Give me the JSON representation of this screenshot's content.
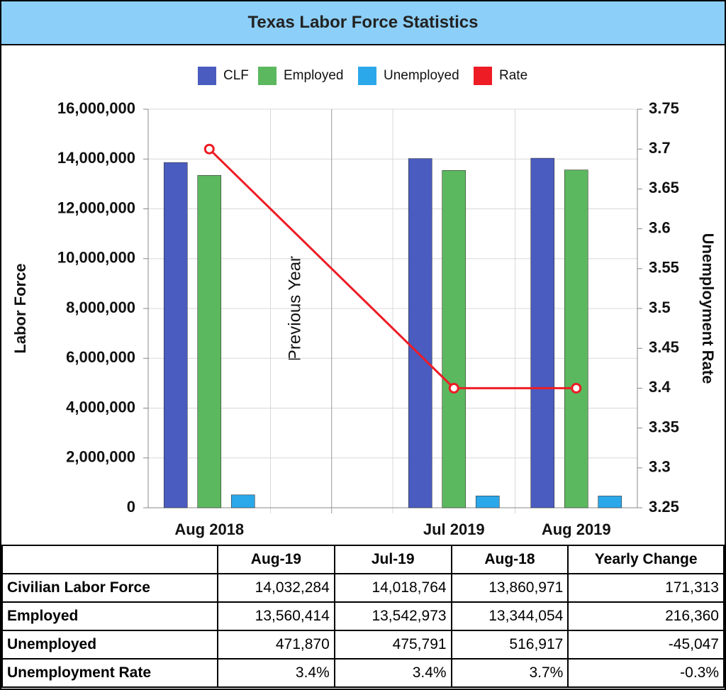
{
  "chart_data": {
    "type": "bar",
    "title": "Texas Labor Force Statistics",
    "categories": [
      "Aug 2018",
      "Jul 2019",
      "Aug 2019"
    ],
    "annotation": "Previous Year",
    "ylabel": "Labor Force",
    "y2label": "Unemployment Rate",
    "series": [
      {
        "name": "CLF",
        "color": "#4a5cc0",
        "values": [
          13860971,
          14018764,
          14032284
        ]
      },
      {
        "name": "Employed",
        "color": "#5cb85f",
        "values": [
          13344054,
          13542973,
          13560414
        ]
      },
      {
        "name": "Unemployed",
        "color": "#2ba8ea",
        "values": [
          516917,
          475791,
          471870
        ]
      },
      {
        "name": "Rate",
        "color": "#ee1c25",
        "type": "line",
        "axis": "y2",
        "values": [
          3.7,
          3.4,
          3.4
        ]
      }
    ],
    "ylim": [
      0,
      16000000
    ],
    "yticks": [
      0,
      {
        "value": 2000000,
        "label": "2,000,000"
      },
      {
        "value": 4000000,
        "label": "4,000,000"
      },
      {
        "value": 6000000,
        "label": "6,000,000"
      },
      {
        "value": 8000000,
        "label": "8,000,000"
      },
      {
        "value": 10000000,
        "label": "10,000,000"
      },
      {
        "value": 12000000,
        "label": "12,000,000"
      },
      {
        "value": 14000000,
        "label": "14,000,000"
      },
      {
        "value": 16000000,
        "label": "16,000,000"
      }
    ],
    "y2lim": [
      3.25,
      3.75
    ],
    "y2ticks": [
      3.25,
      3.3,
      3.35,
      3.4,
      3.45,
      3.5,
      3.55,
      3.6,
      3.65,
      3.7,
      3.75
    ],
    "grid": true,
    "legend": "top"
  },
  "table": {
    "columns": [
      "Aug-19",
      "Jul-19",
      "Aug-18",
      "Yearly Change"
    ],
    "rows": [
      {
        "label": "Civilian Labor Force",
        "cells": [
          "14,032,284",
          "14,018,764",
          "13,860,971",
          "171,313"
        ]
      },
      {
        "label": "Employed",
        "cells": [
          "13,560,414",
          "13,542,973",
          "13,344,054",
          "216,360"
        ]
      },
      {
        "label": "Unemployed",
        "cells": [
          "471,870",
          "475,791",
          "516,917",
          "-45,047"
        ]
      },
      {
        "label": "Unemployment Rate",
        "cells": [
          "3.4%",
          "3.4%",
          "3.7%",
          "-0.3%"
        ]
      }
    ]
  }
}
